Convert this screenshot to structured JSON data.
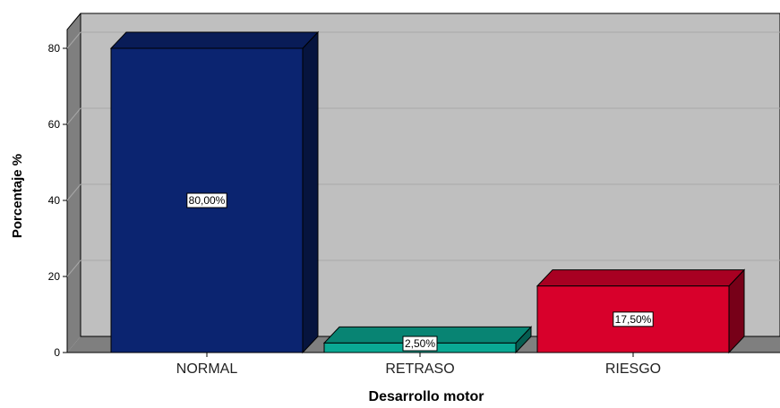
{
  "chart_data": {
    "type": "bar",
    "title": "",
    "xlabel": "Desarrollo motor",
    "ylabel": "Porcentaje %",
    "categories": [
      "NORMAL",
      "RETRASO",
      "RIESGO"
    ],
    "values": [
      80.0,
      2.5,
      17.5
    ],
    "data_labels": [
      "80,00%",
      "2,50%",
      "17,50%"
    ],
    "colors": [
      "#0b2470",
      "#0aa994",
      "#d8002b"
    ],
    "ylim": [
      0,
      80
    ],
    "yticks": [
      0,
      20,
      40,
      60,
      80
    ],
    "grid": true,
    "legend": "none",
    "style": "3d"
  }
}
